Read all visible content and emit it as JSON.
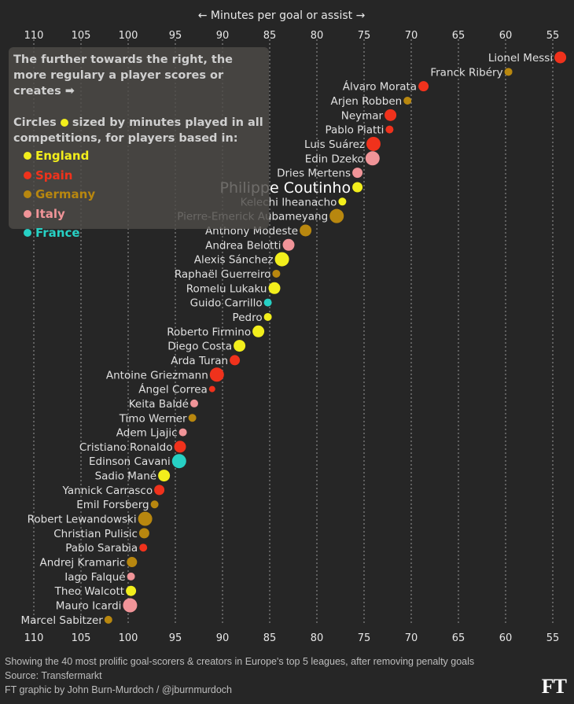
{
  "chart_data": {
    "type": "scatter",
    "title": "",
    "xlabel": "← Minutes per goal or assist →",
    "ylabel": "",
    "xlim": [
      111.5,
      53
    ],
    "x_reversed": true,
    "x_ticks": [
      110,
      105,
      100,
      95,
      90,
      85,
      80,
      75,
      70,
      65,
      60,
      55
    ],
    "grid": "vertical dashed",
    "size_encoding": "minutes played in all competitions (relative, 1–5)",
    "color_encoding": "league country",
    "highlighted_player": "Philippe Coutinho",
    "legend": {
      "placement": "top-left",
      "intro": "The further towards the right, the more regulary a player scores or creates ➡",
      "size_note_prefix": "Circles",
      "size_note_suffix": "sized by minutes played in all competitions, for players based in:",
      "items": [
        {
          "name": "England",
          "color": "#f2ee1c"
        },
        {
          "name": "Spain",
          "color": "#f0321c"
        },
        {
          "name": "Germany",
          "color": "#b8870f"
        },
        {
          "name": "Italy",
          "color": "#f09498"
        },
        {
          "name": "France",
          "color": "#27d0c4"
        }
      ]
    },
    "points": [
      {
        "name": "Lionel Messi",
        "x": 54.2,
        "country": "Spain",
        "size": 4
      },
      {
        "name": "Franck Ribéry",
        "x": 59.7,
        "country": "Germany",
        "size": 2
      },
      {
        "name": "Álvaro Morata",
        "x": 68.7,
        "country": "Spain",
        "size": 3
      },
      {
        "name": "Arjen Robben",
        "x": 70.4,
        "country": "Germany",
        "size": 2
      },
      {
        "name": "Neymar",
        "x": 72.2,
        "country": "Spain",
        "size": 4
      },
      {
        "name": "Pablo Piatti",
        "x": 72.3,
        "country": "Spain",
        "size": 2
      },
      {
        "name": "Luis Suárez",
        "x": 74.0,
        "country": "Spain",
        "size": 5
      },
      {
        "name": "Edin Dzeko",
        "x": 74.1,
        "country": "Italy",
        "size": 5
      },
      {
        "name": "Dries Mertens",
        "x": 75.7,
        "country": "Italy",
        "size": 3
      },
      {
        "name": "Philippe Coutinho",
        "x": 75.7,
        "country": "England",
        "size": 3
      },
      {
        "name": "Kelechi Iheanacho",
        "x": 77.3,
        "country": "England",
        "size": 2
      },
      {
        "name": "Pierre-Emerick Aubameyang",
        "x": 77.9,
        "country": "Germany",
        "size": 5
      },
      {
        "name": "Anthony Modeste",
        "x": 81.2,
        "country": "Germany",
        "size": 4
      },
      {
        "name": "Andrea Belotti",
        "x": 83.0,
        "country": "Italy",
        "size": 4
      },
      {
        "name": "Alexis Sánchez",
        "x": 83.7,
        "country": "England",
        "size": 5
      },
      {
        "name": "Raphaël Guerreiro",
        "x": 84.3,
        "country": "Germany",
        "size": 2
      },
      {
        "name": "Romelu Lukaku",
        "x": 84.5,
        "country": "England",
        "size": 4
      },
      {
        "name": "Guido Carrillo",
        "x": 85.2,
        "country": "France",
        "size": 2
      },
      {
        "name": "Pedro",
        "x": 85.2,
        "country": "England",
        "size": 2
      },
      {
        "name": "Roberto Firmino",
        "x": 86.2,
        "country": "England",
        "size": 4
      },
      {
        "name": "Diego Costa",
        "x": 88.2,
        "country": "England",
        "size": 4
      },
      {
        "name": "Arda Turan",
        "x": 88.7,
        "country": "Spain",
        "size": 3
      },
      {
        "name": "Antoine Griezmann",
        "x": 90.6,
        "country": "Spain",
        "size": 5
      },
      {
        "name": "Ángel Correa",
        "x": 91.1,
        "country": "Spain",
        "size": 1
      },
      {
        "name": "Keita Baldé",
        "x": 93.0,
        "country": "Italy",
        "size": 2
      },
      {
        "name": "Timo Werner",
        "x": 93.2,
        "country": "Germany",
        "size": 2
      },
      {
        "name": "Adem Ljajic",
        "x": 94.2,
        "country": "Italy",
        "size": 2
      },
      {
        "name": "Cristiano Ronaldo",
        "x": 94.5,
        "country": "Spain",
        "size": 4
      },
      {
        "name": "Edinson Cavani",
        "x": 94.6,
        "country": "France",
        "size": 5
      },
      {
        "name": "Sadio Mané",
        "x": 96.2,
        "country": "England",
        "size": 4
      },
      {
        "name": "Yannick Carrasco",
        "x": 96.7,
        "country": "Spain",
        "size": 3
      },
      {
        "name": "Emil Forsberg",
        "x": 97.2,
        "country": "Germany",
        "size": 2
      },
      {
        "name": "Robert Lewandowski",
        "x": 98.2,
        "country": "Germany",
        "size": 5
      },
      {
        "name": "Christian Pulisic",
        "x": 98.3,
        "country": "Germany",
        "size": 3
      },
      {
        "name": "Pablo Sarabia",
        "x": 98.4,
        "country": "Spain",
        "size": 2
      },
      {
        "name": "Andrej Kramaric",
        "x": 99.6,
        "country": "Germany",
        "size": 3
      },
      {
        "name": "Iago Falqué",
        "x": 99.7,
        "country": "Italy",
        "size": 2
      },
      {
        "name": "Theo Walcott",
        "x": 99.7,
        "country": "England",
        "size": 3
      },
      {
        "name": "Mauro Icardi",
        "x": 99.8,
        "country": "Italy",
        "size": 5
      },
      {
        "name": "Marcel Sabitzer",
        "x": 102.1,
        "country": "Germany",
        "size": 2
      }
    ]
  },
  "footer": {
    "note": "Showing the 40 most prolific goal-scorers & creators in Europe's top 5 leagues, after removing penalty goals",
    "source": "Source: Transfermarkt",
    "credit": "FT graphic by John Burn-Murdoch / @jburnmurdoch",
    "logo": "FT"
  }
}
